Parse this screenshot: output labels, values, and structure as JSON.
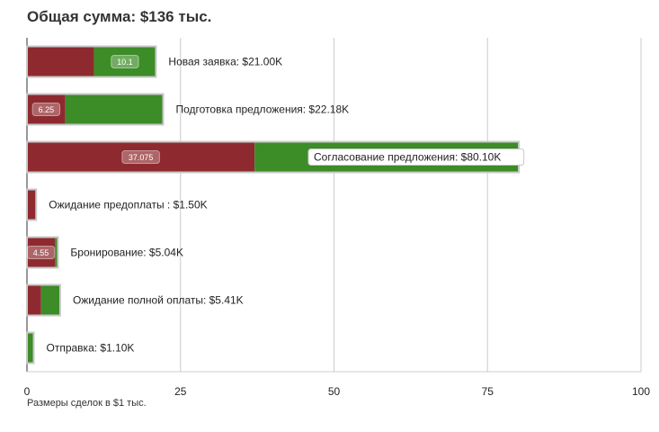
{
  "chart_data": {
    "type": "bar",
    "orientation": "horizontal",
    "stacked": true,
    "title": "Общая сумма: $136 тыс.",
    "footnote": "Размеры сделок в $1 тыс.",
    "xlim": [
      0,
      100
    ],
    "xticks": [
      "0",
      "25",
      "50",
      "75",
      "100"
    ],
    "grid": true,
    "colors": {
      "red": "#8e2a2f",
      "green": "#3c8c27"
    },
    "categories": [
      "Новая заявка: $21.00K",
      "Подготовка предложения: $22.18K",
      "Согласование предложения: $80.10K",
      "Ожидание предоплаты : $1.50K",
      "Бронирование: $5.04K",
      "Ожидание полной оплаты: $5.41K",
      "Отправка: $1.10K"
    ],
    "series": [
      {
        "values": [
          10.9,
          6.25,
          37.075,
          1.5,
          4.55,
          2.3,
          0.0
        ]
      },
      {
        "values": [
          10.1,
          15.93,
          43.025,
          0.0,
          0.49,
          3.11,
          1.1
        ]
      }
    ],
    "inner_labels": [
      "10.1",
      "6.25",
      "37.075",
      "",
      "4.55",
      "",
      ""
    ],
    "inner_label_series": [
      1,
      0,
      0,
      0,
      0,
      0,
      0
    ]
  }
}
